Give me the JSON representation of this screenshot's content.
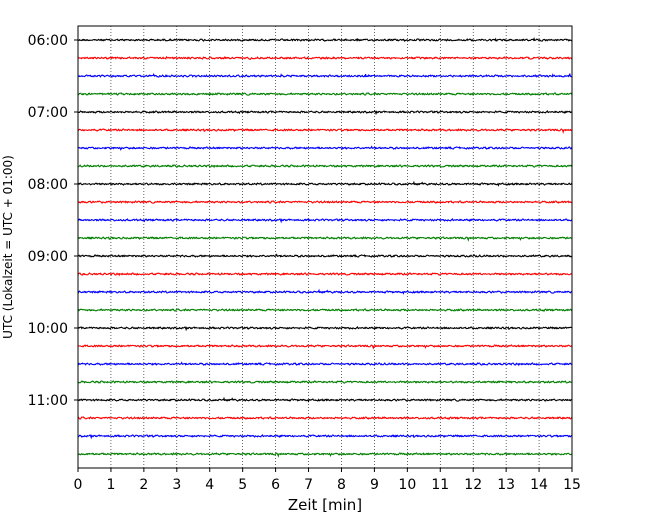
{
  "chart_data": {
    "type": "line",
    "title": "",
    "xlabel": "Zeit  [min]",
    "ylabel": "UTC (Lokalzeit = UTC + 01:00)",
    "xlim": [
      0,
      15
    ],
    "xticks": [
      0,
      1,
      2,
      3,
      4,
      5,
      6,
      7,
      8,
      9,
      10,
      11,
      12,
      13,
      14,
      15
    ],
    "grid": "vertical dotted",
    "yticks": [
      {
        "label": "06:00",
        "row": 0
      },
      {
        "label": "07:00",
        "row": 4
      },
      {
        "label": "08:00",
        "row": 8
      },
      {
        "label": "09:00",
        "row": 12
      },
      {
        "label": "10:00",
        "row": 16
      },
      {
        "label": "11:00",
        "row": 20
      }
    ],
    "line_colors": [
      "#000000",
      "#ff0000",
      "#0000ff",
      "#008000"
    ],
    "trace_start_times": [
      "06:00",
      "06:15",
      "06:30",
      "06:45",
      "07:00",
      "07:15",
      "07:30",
      "07:45",
      "08:00",
      "08:15",
      "08:30",
      "08:45",
      "09:00",
      "09:15",
      "09:30",
      "09:45",
      "10:00",
      "10:15",
      "10:30",
      "10:45",
      "11:00",
      "11:15",
      "11:30",
      "11:45"
    ],
    "trace_duration_min": 15
  }
}
